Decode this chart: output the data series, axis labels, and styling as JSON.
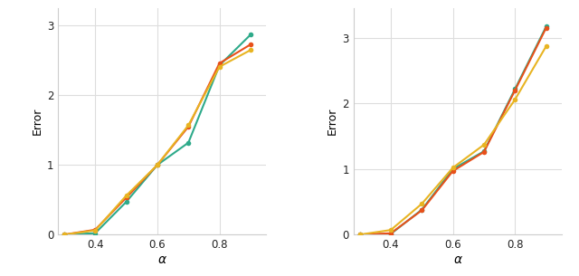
{
  "left": {
    "x": [
      0.3,
      0.4,
      0.5,
      0.6,
      0.7,
      0.8,
      0.9
    ],
    "teal": [
      0.0,
      0.02,
      0.47,
      1.0,
      1.32,
      2.43,
      2.87
    ],
    "orange": [
      0.0,
      0.07,
      0.53,
      1.0,
      1.55,
      2.46,
      2.73
    ],
    "gold": [
      0.0,
      0.06,
      0.56,
      1.0,
      1.57,
      2.41,
      2.65
    ]
  },
  "right": {
    "x": [
      0.3,
      0.4,
      0.5,
      0.6,
      0.7,
      0.8,
      0.9
    ],
    "teal": [
      0.0,
      0.01,
      0.38,
      1.0,
      1.27,
      2.22,
      3.17
    ],
    "orange": [
      0.0,
      0.02,
      0.37,
      0.97,
      1.26,
      2.2,
      3.15
    ],
    "gold": [
      0.0,
      0.07,
      0.47,
      1.02,
      1.37,
      2.06,
      2.87
    ]
  },
  "teal_color": "#2EAA8A",
  "orange_color": "#E8501A",
  "gold_color": "#E8B422",
  "xlabel": "α",
  "ylabel": "Error",
  "left_xlim": [
    0.28,
    0.95
  ],
  "right_xlim": [
    0.28,
    0.95
  ],
  "left_ylim": [
    0.0,
    3.25
  ],
  "right_ylim": [
    0.0,
    3.45
  ],
  "yticks": [
    0,
    1,
    2,
    3
  ],
  "xticks": [
    0.4,
    0.6,
    0.8
  ],
  "bg_color": "#FFFFFF",
  "grid_color": "#DDDDDD",
  "markersize": 4,
  "linewidth": 1.5
}
